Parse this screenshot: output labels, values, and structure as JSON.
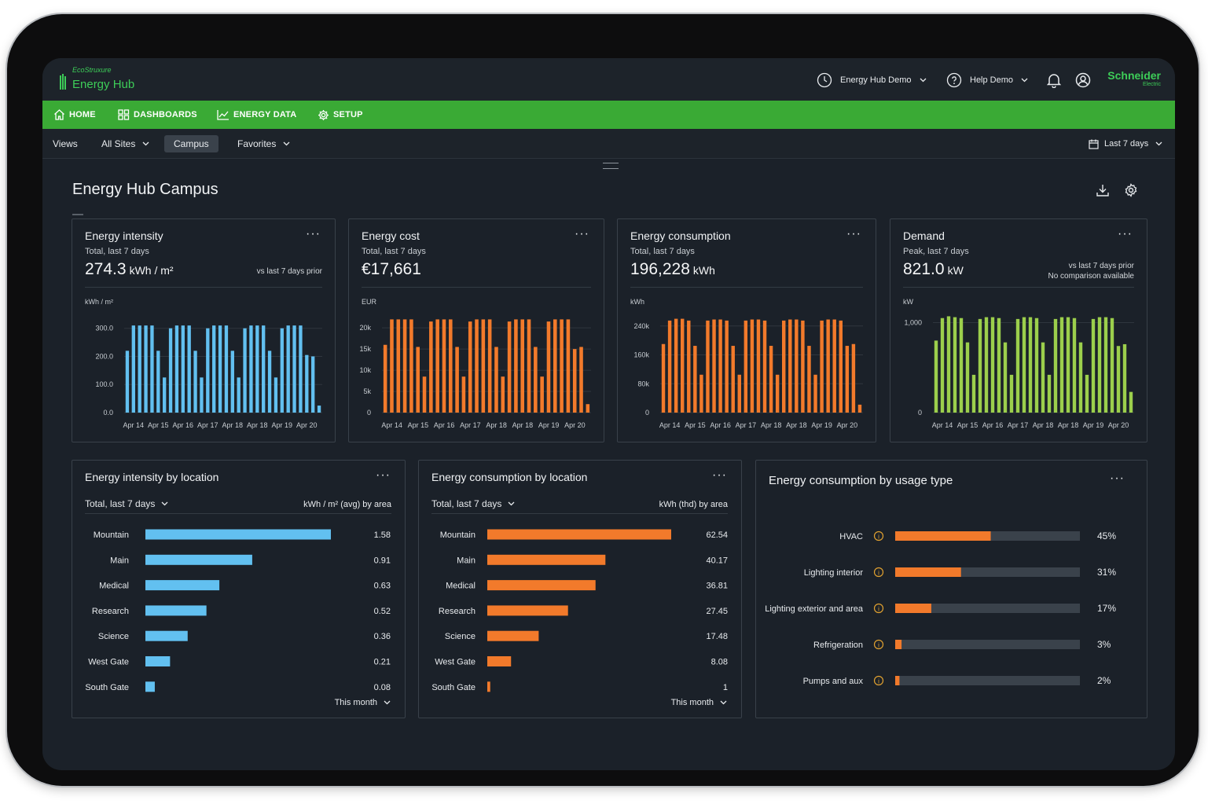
{
  "app": {
    "logo_small": "EcoStruxure",
    "logo_main": "Energy Hub",
    "brand": "Schneider",
    "brand_sub": "Electric",
    "account_label": "Energy Hub Demo",
    "help_label": "Help Demo",
    "accent": "#3dcd58"
  },
  "nav": {
    "items": [
      {
        "label": "HOME",
        "icon": "home-icon"
      },
      {
        "label": "DASHBOARDS",
        "icon": "grid-icon"
      },
      {
        "label": "ENERGY DATA",
        "icon": "chart-line-icon"
      },
      {
        "label": "SETUP",
        "icon": "gear-icon"
      }
    ]
  },
  "views": {
    "label": "Views",
    "all_sites": "All Sites",
    "campus": "Campus",
    "favorites": "Favorites",
    "date_range": "Last 7 days"
  },
  "page": {
    "title": "Energy Hub Campus"
  },
  "kpi_cards": [
    {
      "title": "Energy intensity",
      "subtitle": "Total, last 7 days",
      "value": "274.3",
      "unit": "kWh / m²",
      "comparison": [
        "vs last 7 days prior"
      ],
      "y_unit": "kWh / m²",
      "color": "#62c0f0"
    },
    {
      "title": "Energy cost",
      "subtitle": "Total, last 7 days",
      "value": "€17,661",
      "unit": "",
      "comparison": [],
      "y_unit": "EUR",
      "color": "#f27a2b"
    },
    {
      "title": "Energy consumption",
      "subtitle": "Total, last 7 days",
      "value": "196,228",
      "unit": "kWh",
      "comparison": [],
      "y_unit": "kWh",
      "color": "#f27a2b"
    },
    {
      "title": "Demand",
      "subtitle": "Peak, last 7 days",
      "value": "821.0",
      "unit": "kW",
      "comparison": [
        "vs last 7 days prior",
        "No comparison available"
      ],
      "y_unit": "kW",
      "color": "#9ccf4c"
    }
  ],
  "chart_data": [
    {
      "type": "bar",
      "title": "Energy intensity",
      "ylabel": "kWh / m²",
      "ylim": [
        0,
        330
      ],
      "yticks": [
        0,
        100,
        200,
        300
      ],
      "ytick_labels": [
        "0.0",
        "100.0",
        "200.0",
        "300.0"
      ],
      "xtick_labels": [
        "Apr 14",
        "Apr 15",
        "Apr 16",
        "Apr 17",
        "Apr 18",
        "Apr 18",
        "Apr 19",
        "Apr 20"
      ],
      "grid": true,
      "values": [
        220,
        310,
        310,
        310,
        310,
        220,
        125,
        300,
        310,
        310,
        310,
        220,
        125,
        300,
        310,
        310,
        310,
        220,
        125,
        300,
        310,
        310,
        310,
        220,
        125,
        300,
        310,
        310,
        310,
        205,
        200,
        25
      ]
    },
    {
      "type": "bar",
      "title": "Energy cost",
      "ylabel": "EUR",
      "ylim": [
        0,
        23000
      ],
      "yticks": [
        0,
        5000,
        10000,
        15000,
        20000
      ],
      "ytick_labels": [
        "0",
        "5k",
        "10k",
        "15k",
        "20k"
      ],
      "xtick_labels": [
        "Apr 14",
        "Apr 15",
        "Apr 16",
        "Apr 17",
        "Apr 18",
        "Apr 18",
        "Apr 19",
        "Apr 20"
      ],
      "grid": true,
      "values": [
        16000,
        22000,
        22000,
        22000,
        22000,
        15500,
        8500,
        21500,
        22000,
        22000,
        22000,
        15500,
        8500,
        21500,
        22000,
        22000,
        22000,
        15500,
        8500,
        21500,
        22000,
        22000,
        22000,
        15500,
        8500,
        21500,
        22000,
        22000,
        22000,
        15000,
        15500,
        2000
      ]
    },
    {
      "type": "bar",
      "title": "Energy consumption",
      "ylabel": "kWh",
      "ylim": [
        0,
        270000
      ],
      "yticks": [
        0,
        80000,
        160000,
        240000
      ],
      "ytick_labels": [
        "0",
        "80k",
        "160k",
        "240k"
      ],
      "xtick_labels": [
        "Apr 14",
        "Apr 15",
        "Apr 16",
        "Apr 17",
        "Apr 18",
        "Apr 18",
        "Apr 19",
        "Apr 20"
      ],
      "grid": true,
      "values": [
        190000,
        255000,
        260000,
        260000,
        255000,
        185000,
        105000,
        255000,
        258000,
        258000,
        255000,
        185000,
        105000,
        255000,
        258000,
        258000,
        255000,
        185000,
        105000,
        255000,
        258000,
        258000,
        255000,
        185000,
        105000,
        255000,
        258000,
        258000,
        255000,
        185000,
        190000,
        22000
      ]
    },
    {
      "type": "bar",
      "title": "Demand",
      "ylabel": "kW",
      "ylim": [
        0,
        1100
      ],
      "yticks": [
        0,
        1000
      ],
      "ytick_labels": [
        "0",
        "1,000"
      ],
      "xtick_labels": [
        "Apr 14",
        "Apr 15",
        "Apr 16",
        "Apr 17",
        "Apr 18",
        "Apr 18",
        "Apr 19",
        "Apr 20"
      ],
      "grid": true,
      "values": [
        800,
        1050,
        1070,
        1060,
        1050,
        780,
        420,
        1040,
        1060,
        1060,
        1050,
        780,
        420,
        1040,
        1060,
        1060,
        1050,
        780,
        420,
        1040,
        1060,
        1060,
        1050,
        780,
        420,
        1040,
        1060,
        1060,
        1050,
        740,
        760,
        230
      ]
    },
    {
      "type": "bar",
      "title": "Energy intensity by location",
      "orientation": "horizontal",
      "categories": [
        "Mountain",
        "Main",
        "Medical",
        "Research",
        "Science",
        "West Gate",
        "South Gate"
      ],
      "values": [
        1.58,
        0.91,
        0.63,
        0.52,
        0.36,
        0.21,
        0.08
      ],
      "value_labels": [
        "1.58",
        "0.91",
        "0.63",
        "0.52",
        "0.36",
        "0.21",
        "0.08"
      ],
      "xlim": [
        0,
        1.58
      ]
    },
    {
      "type": "bar",
      "title": "Energy consumption by location",
      "orientation": "horizontal",
      "categories": [
        "Mountain",
        "Main",
        "Medical",
        "Research",
        "Science",
        "West Gate",
        "South Gate"
      ],
      "values": [
        62.54,
        40.17,
        36.81,
        27.45,
        17.48,
        8.08,
        1
      ],
      "value_labels": [
        "62.54",
        "40.17",
        "36.81",
        "27.45",
        "17.48",
        "8.08",
        "1"
      ],
      "xlim": [
        0,
        62.54
      ]
    },
    {
      "type": "bar",
      "title": "Energy consumption by usage type",
      "orientation": "horizontal",
      "categories": [
        "HVAC",
        "Lighting interior",
        "Lighting exterior and area",
        "Refrigeration",
        "Pumps and aux"
      ],
      "values": [
        45,
        31,
        17,
        3,
        2
      ],
      "value_labels": [
        "45%",
        "31%",
        "17%",
        "3%",
        "2%"
      ],
      "xlim": [
        0,
        87
      ]
    }
  ],
  "location_cards": [
    {
      "title": "Energy intensity by location",
      "period": "Total, last 7 days",
      "metric": "kWh / m² (avg) by area",
      "footer": "This month",
      "color": "#62c0f0"
    },
    {
      "title": "Energy consumption by location",
      "period": "Total, last 7 days",
      "metric": "kWh (thd) by area",
      "footer": "This month",
      "color": "#f27a2b"
    }
  ],
  "usage_card": {
    "title": "Energy consumption by usage type",
    "color": "#f27a2b",
    "track_color": "#3a424b",
    "info_color": "#e0a130"
  }
}
